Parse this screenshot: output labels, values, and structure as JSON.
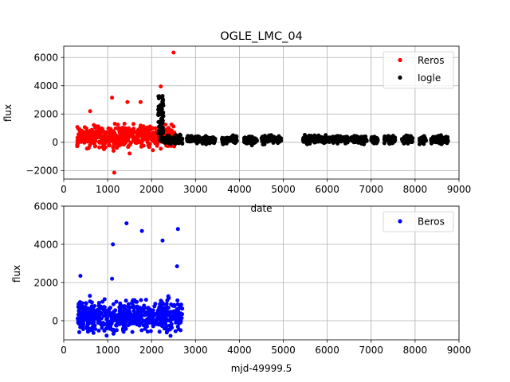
{
  "chart_data": [
    {
      "type": "scatter",
      "title": "OGLE_LMC_04",
      "xlabel": "date",
      "ylabel": "flux",
      "xlim": [
        0,
        9000
      ],
      "ylim": [
        -2600,
        6800
      ],
      "xticks": [
        0,
        1000,
        2000,
        3000,
        4000,
        5000,
        6000,
        7000,
        8000,
        9000
      ],
      "yticks": [
        -2000,
        0,
        2000,
        4000,
        6000
      ],
      "ytick_labels": [
        "−2000",
        "0",
        "2000",
        "4000",
        "6000"
      ],
      "grid": true,
      "legend_position": "top-right",
      "series": [
        {
          "name": "Reros",
          "color": "#ff0000",
          "x_range": [
            300,
            2520
          ],
          "typical_y_range": [
            -800,
            1600
          ],
          "outliers": [
            {
              "x": 2500,
              "y": 6350
            },
            {
              "x": 1100,
              "y": 3150
            },
            {
              "x": 1150,
              "y": -2150
            },
            {
              "x": 1450,
              "y": 2850
            },
            {
              "x": 1750,
              "y": 2850
            },
            {
              "x": 600,
              "y": 2200
            },
            {
              "x": 2210,
              "y": 3950
            }
          ]
        },
        {
          "name": "Iogle",
          "color": "#000000",
          "segments": [
            [
              2200,
              2700
            ],
            [
              2800,
              3100
            ],
            [
              3150,
              3450
            ],
            [
              3600,
              3950
            ],
            [
              4100,
              4400
            ],
            [
              4500,
              4800
            ],
            [
              4850,
              4950
            ],
            [
              5450,
              5650
            ],
            [
              5700,
              6150
            ],
            [
              6200,
              6500
            ],
            [
              6550,
              6900
            ],
            [
              7000,
              7150
            ],
            [
              7300,
              7550
            ],
            [
              7700,
              7950
            ],
            [
              8100,
              8250
            ],
            [
              8350,
              8750
            ]
          ],
          "typical_y_range": [
            -200,
            600
          ],
          "peak": {
            "x": 2210,
            "y": 3300
          }
        }
      ]
    },
    {
      "type": "scatter",
      "xlabel": "mjd-49999.5",
      "ylabel": "flux",
      "xlim": [
        0,
        9000
      ],
      "ylim": [
        -1000,
        6000
      ],
      "xticks": [
        0,
        1000,
        2000,
        3000,
        4000,
        5000,
        6000,
        7000,
        8000,
        9000
      ],
      "yticks": [
        0,
        2000,
        4000,
        6000
      ],
      "grid": true,
      "legend_position": "top-right",
      "series": [
        {
          "name": "Beros",
          "color": "#0000ff",
          "x_range": [
            300,
            2700
          ],
          "typical_y_range": [
            -1000,
            1500
          ],
          "outliers": [
            {
              "x": 1430,
              "y": 5100
            },
            {
              "x": 1120,
              "y": 4000
            },
            {
              "x": 1780,
              "y": 4700
            },
            {
              "x": 2600,
              "y": 4800
            },
            {
              "x": 2250,
              "y": 4200
            },
            {
              "x": 380,
              "y": 2350
            },
            {
              "x": 1100,
              "y": 2200
            },
            {
              "x": 2580,
              "y": 2850
            }
          ]
        }
      ]
    }
  ]
}
